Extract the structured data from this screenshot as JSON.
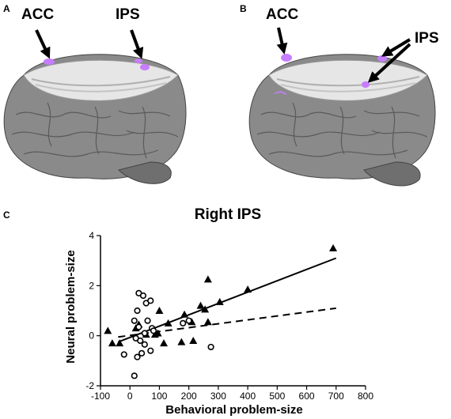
{
  "panels": {
    "a": {
      "letter": "A",
      "acc_label": "ACC",
      "ips_label": "IPS"
    },
    "b": {
      "letter": "B",
      "acc_label": "ACC",
      "ips_label": "IPS"
    },
    "c": {
      "letter": "C"
    }
  },
  "colors": {
    "brain": "#8a8a8a",
    "brain_dark": "#555555",
    "slice": "#e6e6e6",
    "activation": "#c77dff"
  },
  "chart_data": {
    "type": "scatter",
    "title": "Right IPS",
    "xlabel": "Behavioral problem-size",
    "ylabel": "Neural problem-size",
    "xlim": [
      -100,
      800
    ],
    "ylim": [
      -2,
      4
    ],
    "xticks": [
      -100,
      0,
      100,
      200,
      300,
      400,
      500,
      600,
      700,
      800
    ],
    "yticks": [
      -2,
      0,
      2,
      4
    ],
    "series": [
      {
        "marker": "triangle",
        "line": "solid",
        "fit": {
          "x": [
            -40,
            700
          ],
          "y": [
            -0.25,
            3.1
          ]
        },
        "points": [
          [
            690,
            3.5
          ],
          [
            400,
            1.85
          ],
          [
            265,
            2.25
          ],
          [
            305,
            1.35
          ],
          [
            210,
            0.55
          ],
          [
            185,
            0.85
          ],
          [
            240,
            1.2
          ],
          [
            100,
            1.0
          ],
          [
            -75,
            0.2
          ],
          [
            -60,
            -0.3
          ],
          [
            -35,
            -0.3
          ],
          [
            20,
            0.3
          ],
          [
            30,
            0.45
          ],
          [
            55,
            0.05
          ],
          [
            85,
            0.05
          ],
          [
            95,
            0.1
          ],
          [
            115,
            -0.3
          ],
          [
            130,
            0.5
          ],
          [
            175,
            -0.25
          ],
          [
            215,
            -0.2
          ],
          [
            265,
            0.55
          ],
          [
            255,
            1.05
          ]
        ]
      },
      {
        "marker": "circle",
        "line": "dashed",
        "fit": {
          "x": [
            -40,
            700
          ],
          "y": [
            -0.05,
            1.1
          ]
        },
        "points": [
          [
            30,
            1.7
          ],
          [
            45,
            1.6
          ],
          [
            55,
            1.3
          ],
          [
            70,
            1.4
          ],
          [
            25,
            1.0
          ],
          [
            15,
            0.6
          ],
          [
            60,
            0.6
          ],
          [
            75,
            0.3
          ],
          [
            30,
            0.35
          ],
          [
            50,
            0.1
          ],
          [
            20,
            -0.1
          ],
          [
            35,
            -0.2
          ],
          [
            50,
            -0.35
          ],
          [
            40,
            -0.7
          ],
          [
            70,
            -0.6
          ],
          [
            -20,
            -0.75
          ],
          [
            25,
            -0.85
          ],
          [
            15,
            -1.6
          ],
          [
            180,
            0.5
          ],
          [
            200,
            0.6
          ],
          [
            275,
            -0.45
          ],
          [
            80,
            0.2
          ]
        ]
      }
    ]
  }
}
